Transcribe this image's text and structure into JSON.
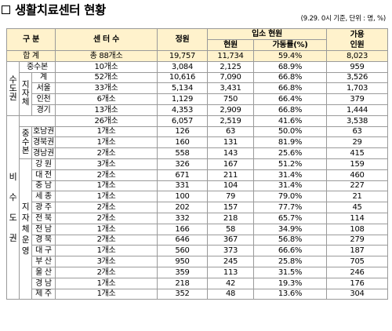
{
  "title": "생활치료센터 현황",
  "note": "(9.29. 0시 기준, 단위 : 명, %)",
  "header": {
    "category": "구 분",
    "centers": "센 터 수",
    "capacity": "정원",
    "admission": "입소 현원",
    "current": "현원",
    "utilization": "가동률(%)",
    "available_1": "가용",
    "available_2": "인원"
  },
  "total": {
    "label": "합 계",
    "centers": "총 88개소",
    "capacity": "19,757",
    "current": "11,734",
    "util": "59.4%",
    "avail": "8,023"
  },
  "capital": {
    "group": [
      "수",
      "도",
      "권"
    ],
    "central": {
      "label": "중수본",
      "centers": "10개소",
      "capacity": "3,084",
      "current": "2,125",
      "util": "68.9%",
      "avail": "959"
    },
    "local_group": [
      "지",
      "자",
      "체"
    ],
    "local": [
      {
        "label": "계",
        "centers": "52개소",
        "capacity": "10,616",
        "current": "7,090",
        "util": "66.8%",
        "avail": "3,526"
      },
      {
        "label": "서울",
        "centers": "33개소",
        "capacity": "5,134",
        "current": "3,431",
        "util": "66.8%",
        "avail": "1,703"
      },
      {
        "label": "인천",
        "centers": "6개소",
        "capacity": "1,129",
        "current": "750",
        "util": "66.4%",
        "avail": "379"
      },
      {
        "label": "경기",
        "centers": "13개소",
        "capacity": "4,353",
        "current": "2,909",
        "util": "66.8%",
        "avail": "1,444"
      }
    ]
  },
  "noncapital": {
    "group": [
      "비",
      "수",
      "도",
      "권"
    ],
    "summary": {
      "centers": "26개소",
      "capacity": "6,057",
      "current": "2,519",
      "util": "41.6%",
      "avail": "3,538"
    },
    "central_group": [
      "중",
      "수",
      "본"
    ],
    "central": [
      {
        "label": "호남권",
        "centers": "1개소",
        "capacity": "126",
        "current": "63",
        "util": "50.0%",
        "avail": "63"
      },
      {
        "label": "경북권",
        "centers": "1개소",
        "capacity": "160",
        "current": "131",
        "util": "81.9%",
        "avail": "29"
      },
      {
        "label": "경남권",
        "centers": "2개소",
        "capacity": "558",
        "current": "143",
        "util": "25.6%",
        "avail": "415"
      }
    ],
    "local_group": [
      "지",
      "자",
      "체",
      "운",
      "영"
    ],
    "local": [
      {
        "label": "강 원",
        "centers": "3개소",
        "capacity": "326",
        "current": "167",
        "util": "51.2%",
        "avail": "159"
      },
      {
        "label": "대 전",
        "centers": "2개소",
        "capacity": "671",
        "current": "211",
        "util": "31.4%",
        "avail": "460"
      },
      {
        "label": "충 남",
        "centers": "1개소",
        "capacity": "331",
        "current": "104",
        "util": "31.4%",
        "avail": "227"
      },
      {
        "label": "세 종",
        "centers": "1개소",
        "capacity": "100",
        "current": "79",
        "util": "79.0%",
        "avail": "21"
      },
      {
        "label": "광 주",
        "centers": "2개소",
        "capacity": "202",
        "current": "157",
        "util": "77.7%",
        "avail": "45"
      },
      {
        "label": "전 북",
        "centers": "2개소",
        "capacity": "332",
        "current": "218",
        "util": "65.7%",
        "avail": "114"
      },
      {
        "label": "전 남",
        "centers": "1개소",
        "capacity": "166",
        "current": "58",
        "util": "34.9%",
        "avail": "108"
      },
      {
        "label": "경 북",
        "centers": "2개소",
        "capacity": "646",
        "current": "367",
        "util": "56.8%",
        "avail": "279"
      },
      {
        "label": "대 구",
        "centers": "1개소",
        "capacity": "560",
        "current": "373",
        "util": "66.6%",
        "avail": "187"
      },
      {
        "label": "부 산",
        "centers": "3개소",
        "capacity": "950",
        "current": "245",
        "util": "25.8%",
        "avail": "705"
      },
      {
        "label": "울 산",
        "centers": "2개소",
        "capacity": "359",
        "current": "113",
        "util": "31.5%",
        "avail": "246"
      },
      {
        "label": "경 남",
        "centers": "1개소",
        "capacity": "218",
        "current": "42",
        "util": "19.3%",
        "avail": "176"
      },
      {
        "label": "제 주",
        "centers": "1개소",
        "capacity": "352",
        "current": "48",
        "util": "13.6%",
        "avail": "304"
      }
    ]
  }
}
